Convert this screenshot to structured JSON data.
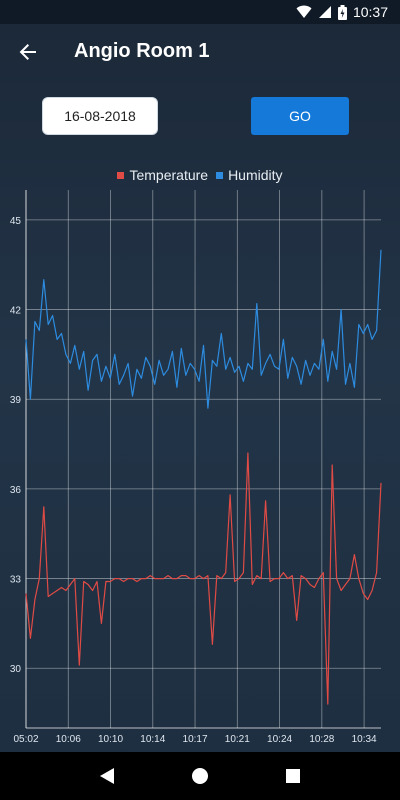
{
  "status": {
    "time": "10:37"
  },
  "app": {
    "title": "Angio Room 1"
  },
  "form": {
    "date_value": "16-08-2018",
    "go_label": "GO"
  },
  "colors": {
    "temperature": "#e04b45",
    "humidity": "#2d8ce0",
    "accent": "#1479d9"
  },
  "chart_data": {
    "type": "line",
    "legend_position": "top-center",
    "grid": true,
    "ylim": [
      28,
      46
    ],
    "yticks": [
      30,
      33,
      36,
      39,
      42,
      45
    ],
    "x_tick_labels": [
      "05:02",
      "10:06",
      "10:10",
      "10:14",
      "10:17",
      "10:21",
      "10:24",
      "10:28",
      "10:34"
    ],
    "series": [
      {
        "name": "Humidity",
        "values": [
          41.0,
          39.0,
          41.6,
          41.3,
          43.0,
          41.5,
          41.8,
          41.0,
          41.2,
          40.5,
          40.2,
          40.8,
          40.0,
          40.6,
          39.3,
          40.3,
          40.5,
          39.6,
          40.1,
          39.7,
          40.5,
          39.5,
          39.8,
          40.2,
          39.1,
          40.0,
          39.7,
          40.4,
          40.1,
          39.5,
          40.3,
          39.8,
          40.0,
          40.6,
          39.4,
          40.7,
          39.8,
          40.2,
          40.0,
          39.6,
          40.8,
          38.7,
          40.3,
          40.1,
          41.2,
          40.0,
          40.4,
          39.9,
          40.1,
          39.6,
          40.2,
          40.0,
          42.2,
          39.8,
          40.2,
          40.5,
          40.1,
          40.0,
          41.0,
          39.7,
          40.4,
          40.1,
          39.5,
          40.3,
          39.8,
          40.2,
          40.0,
          41.0,
          39.6,
          40.6,
          40.0,
          42.0,
          39.5,
          40.2,
          39.4,
          41.5,
          41.2,
          41.5,
          41.0,
          41.3,
          44.0
        ]
      },
      {
        "name": "Temperature",
        "values": [
          32.5,
          31.0,
          32.3,
          33.0,
          35.4,
          32.4,
          32.5,
          32.6,
          32.7,
          32.6,
          32.8,
          33.0,
          30.1,
          32.9,
          32.8,
          32.6,
          32.9,
          31.5,
          32.9,
          32.9,
          33.0,
          33.0,
          32.9,
          33.0,
          33.0,
          32.9,
          33.0,
          33.0,
          33.1,
          33.0,
          33.0,
          33.0,
          33.1,
          33.0,
          33.0,
          33.1,
          33.1,
          33.0,
          33.0,
          33.1,
          33.0,
          33.1,
          30.8,
          33.1,
          33.0,
          33.2,
          35.8,
          32.9,
          33.0,
          33.2,
          37.2,
          32.8,
          33.1,
          33.0,
          35.6,
          32.9,
          33.0,
          33.0,
          33.2,
          33.0,
          33.1,
          31.6,
          33.1,
          33.0,
          32.8,
          32.7,
          33.0,
          33.2,
          28.8,
          36.8,
          33.0,
          32.6,
          32.8,
          33.0,
          33.8,
          33.0,
          32.5,
          32.3,
          32.6,
          33.2,
          36.2
        ]
      }
    ]
  }
}
